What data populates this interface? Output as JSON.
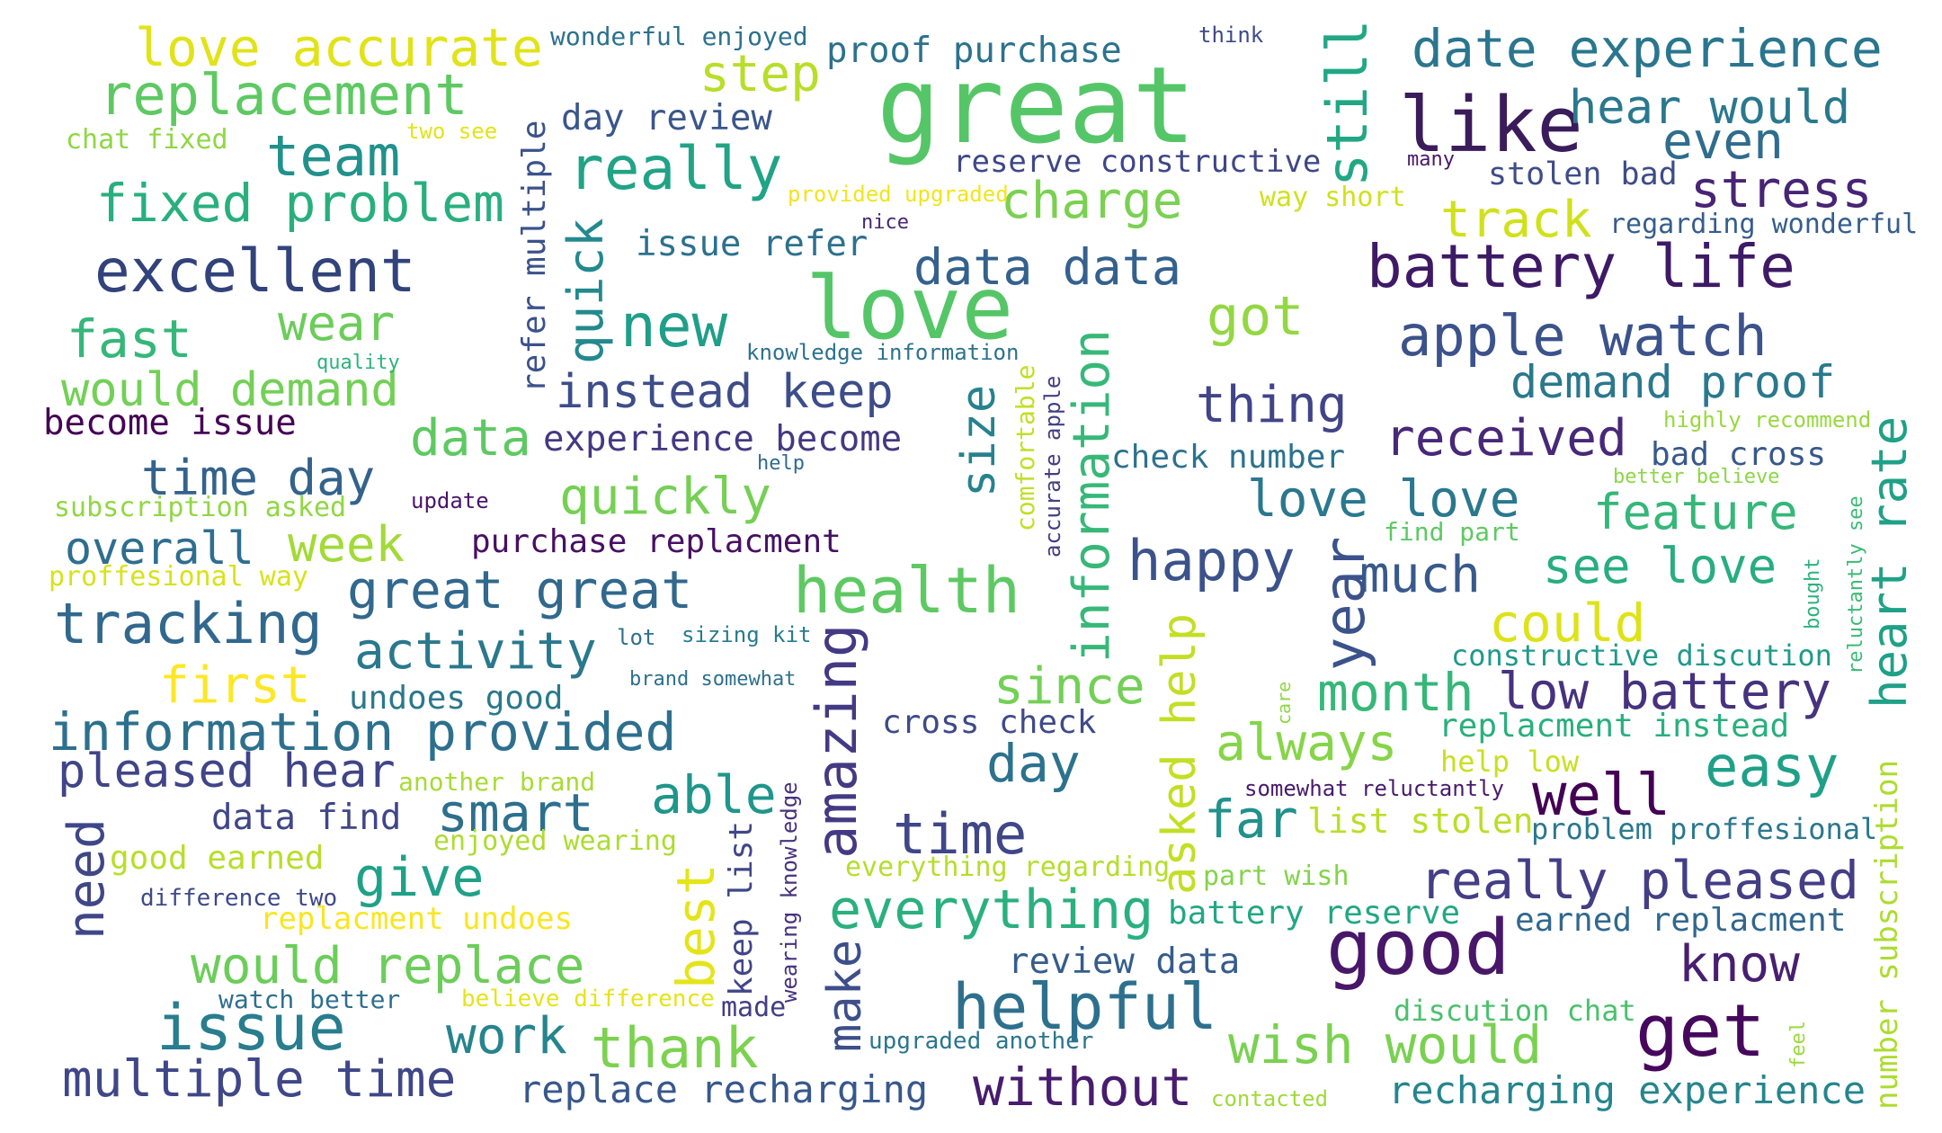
{
  "words": [
    {
      "text": "great",
      "color": "#55c667"
    },
    {
      "text": "love",
      "color": "#55c667"
    },
    {
      "text": "like",
      "color": "#3b1c5b"
    },
    {
      "text": "good",
      "color": "#481769"
    },
    {
      "text": "get",
      "color": "#46085c"
    },
    {
      "text": "helpful",
      "color": "#2d708e"
    },
    {
      "text": "issue",
      "color": "#287d8e"
    },
    {
      "text": "health",
      "color": "#5ec962"
    },
    {
      "text": "excellent",
      "color": "#32437b"
    },
    {
      "text": "battery life",
      "color": "#3e1a66"
    },
    {
      "text": "apple watch",
      "color": "#3b528b"
    },
    {
      "text": "replacement",
      "color": "#5ec962"
    },
    {
      "text": "love accurate",
      "color": "#e1e318"
    },
    {
      "text": "date experience",
      "color": "#2a768e"
    },
    {
      "text": "hear would",
      "color": "#2a788e"
    },
    {
      "text": "really",
      "color": "#20a386"
    },
    {
      "text": "new",
      "color": "#1f9e89"
    },
    {
      "text": "team",
      "color": "#21918c"
    },
    {
      "text": "fixed problem",
      "color": "#29af7f"
    },
    {
      "text": "even",
      "color": "#2f6c8e"
    },
    {
      "text": "stress",
      "color": "#482475"
    },
    {
      "text": "still",
      "color": "#22a785"
    },
    {
      "text": "step",
      "color": "#b8de29"
    },
    {
      "text": "charge",
      "color": "#7ad151"
    },
    {
      "text": "track",
      "color": "#d0e11c"
    },
    {
      "text": "proof purchase",
      "color": "#2c728e"
    },
    {
      "text": "day review",
      "color": "#39568c"
    },
    {
      "text": "reserve constructive",
      "color": "#3f4788"
    },
    {
      "text": "stolen bad",
      "color": "#3e4c8a"
    },
    {
      "text": "data data",
      "color": "#34618d"
    },
    {
      "text": "got",
      "color": "#93d741"
    },
    {
      "text": "fast",
      "color": "#35b779"
    },
    {
      "text": "wear",
      "color": "#6ccd5a"
    },
    {
      "text": "would demand",
      "color": "#73d056"
    },
    {
      "text": "instead keep",
      "color": "#3d4d8a"
    },
    {
      "text": "thing",
      "color": "#414487"
    },
    {
      "text": "received",
      "color": "#482878"
    },
    {
      "text": "demand proof",
      "color": "#2a788e"
    },
    {
      "text": "heart rate",
      "color": "#1fa187"
    },
    {
      "text": "quick",
      "color": "#23898e"
    },
    {
      "text": "refer multiple",
      "color": "#3b528b"
    },
    {
      "text": "issue refer",
      "color": "#2c718e"
    },
    {
      "text": "size",
      "color": "#26828e"
    },
    {
      "text": "information",
      "color": "#37b878"
    },
    {
      "text": "become issue",
      "color": "#440154"
    },
    {
      "text": "data",
      "color": "#5ec962"
    },
    {
      "text": "experience become",
      "color": "#453882"
    },
    {
      "text": "time day",
      "color": "#33638d"
    },
    {
      "text": "quickly",
      "color": "#75d054"
    },
    {
      "text": "love love",
      "color": "#2a788e"
    },
    {
      "text": "feature",
      "color": "#35b779"
    },
    {
      "text": "check number",
      "color": "#2c728e"
    },
    {
      "text": "bad cross",
      "color": "#38588c"
    },
    {
      "text": "subscription asked",
      "color": "#90d743"
    },
    {
      "text": "update",
      "color": "#481668"
    },
    {
      "text": "overall",
      "color": "#2e6e8e"
    },
    {
      "text": "week",
      "color": "#a2da37"
    },
    {
      "text": "purchase replacment",
      "color": "#471063"
    },
    {
      "text": "happy",
      "color": "#3b528b"
    },
    {
      "text": "much",
      "color": "#38598c"
    },
    {
      "text": "see love",
      "color": "#27ad81"
    },
    {
      "text": "proffesional way",
      "color": "#d8e219"
    },
    {
      "text": "great great",
      "color": "#31688e"
    },
    {
      "text": "year",
      "color": "#3b528b"
    },
    {
      "text": "could",
      "color": "#dde318"
    },
    {
      "text": "tracking",
      "color": "#31688e"
    },
    {
      "text": "activity",
      "color": "#2a788e"
    },
    {
      "text": "amazing",
      "color": "#443a83"
    },
    {
      "text": "asked help",
      "color": "#c2df23"
    },
    {
      "text": "first",
      "color": "#fde725"
    },
    {
      "text": "since",
      "color": "#73d056"
    },
    {
      "text": "month",
      "color": "#35b779"
    },
    {
      "text": "low battery",
      "color": "#46327e"
    },
    {
      "text": "constructive discution",
      "color": "#1f9a8a"
    },
    {
      "text": "undoes good",
      "color": "#2a788e"
    },
    {
      "text": "information provided",
      "color": "#2d708e"
    },
    {
      "text": "cross check",
      "color": "#3e4a89"
    },
    {
      "text": "always",
      "color": "#86d549"
    },
    {
      "text": "replacment instead",
      "color": "#29af7f"
    },
    {
      "text": "easy",
      "color": "#1fa088"
    },
    {
      "text": "pleased hear",
      "color": "#404588"
    },
    {
      "text": "able",
      "color": "#1f968b"
    },
    {
      "text": "day",
      "color": "#2c728e"
    },
    {
      "text": "smart",
      "color": "#2d708e"
    },
    {
      "text": "far",
      "color": "#21918c"
    },
    {
      "text": "help low",
      "color": "#c8e020"
    },
    {
      "text": "well",
      "color": "#440154"
    },
    {
      "text": "data find",
      "color": "#3f4788"
    },
    {
      "text": "need",
      "color": "#3f4788"
    },
    {
      "text": "time",
      "color": "#3f4788"
    },
    {
      "text": "list stolen",
      "color": "#bade28"
    },
    {
      "text": "problem proffesional",
      "color": "#2a788e"
    },
    {
      "text": "good earned",
      "color": "#b8de29"
    },
    {
      "text": "give",
      "color": "#1fa188"
    },
    {
      "text": "really pleased",
      "color": "#433e85"
    },
    {
      "text": "best",
      "color": "#e5e419"
    },
    {
      "text": "everything",
      "color": "#2ab07f"
    },
    {
      "text": "would replace",
      "color": "#6ccd5a"
    },
    {
      "text": "review data",
      "color": "#365c8d"
    },
    {
      "text": "know",
      "color": "#481f70"
    },
    {
      "text": "work",
      "color": "#25848e"
    },
    {
      "text": "thank",
      "color": "#7cd250"
    },
    {
      "text": "wish would",
      "color": "#7ad151"
    },
    {
      "text": "multiple time",
      "color": "#3f4788"
    },
    {
      "text": "replace recharging",
      "color": "#38588c"
    },
    {
      "text": "without",
      "color": "#481c6e"
    },
    {
      "text": "recharging experience",
      "color": "#25858e"
    },
    {
      "text": "battery reserve",
      "color": "#22a785"
    },
    {
      "text": "earned replacment",
      "color": "#31688e"
    },
    {
      "text": "discution chat",
      "color": "#4ac16d"
    },
    {
      "text": "make",
      "color": "#3c4f8a"
    },
    {
      "text": "keep list",
      "color": "#404688"
    },
    {
      "text": "wonderful enjoyed",
      "color": "#2c718e"
    },
    {
      "text": "think",
      "color": "#3e4a89"
    },
    {
      "text": "many",
      "color": "#48186a"
    },
    {
      "text": "chat fixed",
      "color": "#8fd744"
    },
    {
      "text": "two see",
      "color": "#e2e418"
    },
    {
      "text": "provided upgraded",
      "color": "#f1e51d"
    },
    {
      "text": "nice",
      "color": "#482677"
    },
    {
      "text": "way short",
      "color": "#d0e11c"
    },
    {
      "text": "regarding wonderful",
      "color": "#365d8d"
    },
    {
      "text": "knowledge information",
      "color": "#2c728e"
    },
    {
      "text": "quality",
      "color": "#2db27d"
    },
    {
      "text": "comfortable",
      "color": "#c2df23"
    },
    {
      "text": "accurate apple",
      "color": "#433e85"
    },
    {
      "text": "highly recommend",
      "color": "#98d83e"
    },
    {
      "text": "better believe",
      "color": "#8bd646"
    },
    {
      "text": "help",
      "color": "#2f6b8e"
    },
    {
      "text": "find part",
      "color": "#5ec962"
    },
    {
      "text": "reluctantly see",
      "color": "#3bbb75"
    },
    {
      "text": "bought",
      "color": "#2db27d"
    },
    {
      "text": "lot",
      "color": "#2d708e"
    },
    {
      "text": "sizing kit",
      "color": "#287c8e"
    },
    {
      "text": "brand somewhat",
      "color": "#2d708e"
    },
    {
      "text": "care",
      "color": "#8fd744"
    },
    {
      "text": "number subscription",
      "color": "#addc30"
    },
    {
      "text": "another brand",
      "color": "#a8db34"
    },
    {
      "text": "somewhat reluctantly",
      "color": "#481a6c"
    },
    {
      "text": "enjoyed wearing",
      "color": "#addc30"
    },
    {
      "text": "wearing knowledge",
      "color": "#46337f"
    },
    {
      "text": "everything regarding",
      "color": "#b5de2b"
    },
    {
      "text": "part wish",
      "color": "#84d44b"
    },
    {
      "text": "difference two",
      "color": "#3e4989"
    },
    {
      "text": "replacment undoes",
      "color": "#f8e621"
    },
    {
      "text": "watch better",
      "color": "#2e6f8e"
    },
    {
      "text": "believe difference",
      "color": "#e5e419"
    },
    {
      "text": "made",
      "color": "#433d84"
    },
    {
      "text": "upgraded another",
      "color": "#2b758e"
    },
    {
      "text": "contacted",
      "color": "#9fda3a"
    },
    {
      "text": "feel",
      "color": "#9bd93c"
    }
  ]
}
